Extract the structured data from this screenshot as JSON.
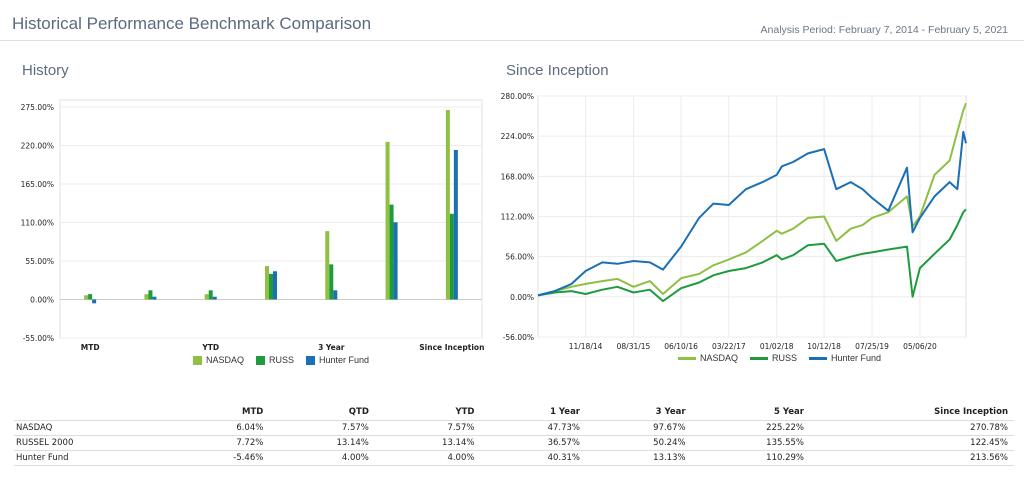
{
  "header": {
    "title": "Historical Performance Benchmark Comparison",
    "period": "Analysis Period: February 7, 2014 - February 5, 2021"
  },
  "colors": {
    "nasdaq": "#8dc043",
    "russ": "#1f9b3e",
    "hunter": "#1a6fb5"
  },
  "chart_data": [
    {
      "type": "bar",
      "title": "History",
      "categories": [
        "MTD",
        "QTD",
        "YTD",
        "1 Year",
        "3 Year",
        "5 Year",
        "Since Inception"
      ],
      "tick_labels": [
        "MTD",
        "",
        "YTD",
        "",
        "3 Year",
        "",
        "Since Inception"
      ],
      "y_ticks": [
        "275.00%",
        "220.00%",
        "165.00%",
        "110.00%",
        "55.00%",
        "0.00%",
        "-55.00%"
      ],
      "ylim": [
        -55,
        285
      ],
      "series": [
        {
          "name": "NASDAQ",
          "values": [
            6.04,
            7.57,
            7.57,
            47.73,
            97.67,
            225.22,
            270.78
          ]
        },
        {
          "name": "RUSS",
          "values": [
            7.72,
            13.14,
            13.14,
            36.57,
            50.24,
            135.55,
            122.45
          ]
        },
        {
          "name": "Hunter Fund",
          "values": [
            -5.46,
            4.0,
            4.0,
            40.31,
            13.13,
            110.29,
            213.56
          ]
        }
      ],
      "legend_position": "bottom",
      "grid": true
    },
    {
      "type": "line",
      "title": "Since Inception",
      "x_ticks": [
        "11/18/14",
        "08/31/15",
        "06/10/16",
        "03/22/17",
        "01/02/18",
        "10/12/18",
        "07/25/19",
        "05/06/20"
      ],
      "y_ticks": [
        "280.00%",
        "224.00%",
        "168.00%",
        "112.00%",
        "56.00%",
        "0.00%",
        "-56.00%"
      ],
      "ylim": [
        -56,
        280
      ],
      "xlim": [
        "02/07/14",
        "02/05/21"
      ],
      "x": [
        "02/07/14",
        "05/18/14",
        "08/26/14",
        "11/18/14",
        "02/26/15",
        "05/27/15",
        "08/31/15",
        "12/07/15",
        "02/23/16",
        "06/10/16",
        "09/26/16",
        "12/20/16",
        "03/22/17",
        "07/02/17",
        "10/10/17",
        "01/02/18",
        "02/02/18",
        "04/10/18",
        "07/08/18",
        "10/12/18",
        "12/24/18",
        "03/20/19",
        "05/30/19",
        "07/25/19",
        "10/30/19",
        "02/19/20",
        "03/23/20",
        "05/06/20",
        "08/01/20",
        "10/30/20",
        "12/15/20",
        "01/20/21",
        "02/05/21"
      ],
      "series": [
        {
          "name": "NASDAQ",
          "values": [
            2,
            8,
            14,
            18,
            22,
            25,
            14,
            22,
            4,
            26,
            32,
            44,
            52,
            62,
            78,
            92,
            88,
            95,
            110,
            112,
            78,
            95,
            100,
            110,
            118,
            140,
            98,
            112,
            170,
            190,
            230,
            260,
            270
          ]
        },
        {
          "name": "RUSS",
          "values": [
            2,
            6,
            8,
            4,
            10,
            14,
            6,
            10,
            -6,
            12,
            20,
            30,
            36,
            40,
            48,
            58,
            52,
            58,
            72,
            74,
            50,
            56,
            60,
            62,
            66,
            70,
            0,
            40,
            60,
            80,
            100,
            118,
            122
          ]
        },
        {
          "name": "Hunter Fund",
          "values": [
            2,
            8,
            18,
            36,
            48,
            46,
            50,
            48,
            38,
            70,
            110,
            130,
            128,
            150,
            160,
            170,
            182,
            188,
            200,
            206,
            150,
            160,
            150,
            138,
            120,
            180,
            90,
            110,
            140,
            160,
            150,
            230,
            214
          ]
        }
      ],
      "legend_position": "bottom",
      "grid": true
    }
  ],
  "legend": {
    "nasdaq": "NASDAQ",
    "russ": "RUSS",
    "hunter": "Hunter Fund"
  },
  "table": {
    "headers": [
      "",
      "MTD",
      "QTD",
      "YTD",
      "1 Year",
      "3 Year",
      "5 Year",
      "Since Inception"
    ],
    "rows": [
      [
        "NASDAQ",
        "6.04%",
        "7.57%",
        "7.57%",
        "47.73%",
        "97.67%",
        "225.22%",
        "270.78%"
      ],
      [
        "RUSSEL 2000",
        "7.72%",
        "13.14%",
        "13.14%",
        "36.57%",
        "50.24%",
        "135.55%",
        "122.45%"
      ],
      [
        "Hunter Fund",
        "-5.46%",
        "4.00%",
        "4.00%",
        "40.31%",
        "13.13%",
        "110.29%",
        "213.56%"
      ]
    ]
  }
}
